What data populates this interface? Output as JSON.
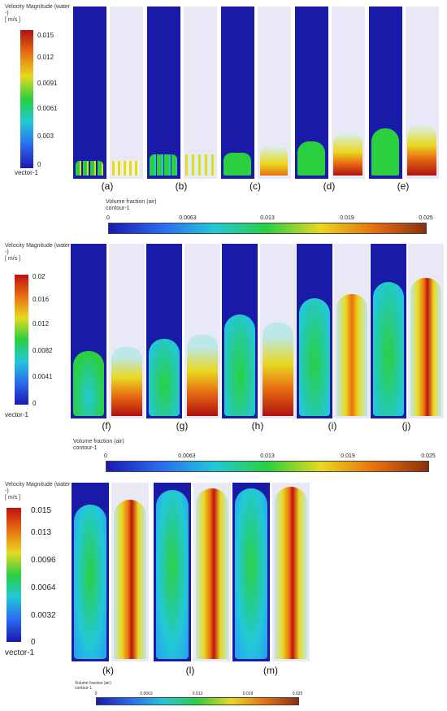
{
  "row1": {
    "legend_title": "Velocity Magnitude (water\n-)\n[ m/s ]",
    "legend_ticks": [
      "0.015",
      "0.012",
      "0.0091",
      "0.0061",
      "0.003",
      "0"
    ],
    "legend_foot": "vector-1",
    "captions": [
      "(a)",
      "(b)",
      "(c)",
      "(d)",
      "(e)"
    ],
    "colorbar_title": "Volume fraction (air)\ncontour-1",
    "colorbar_ticks": [
      "0",
      "0.0063",
      "0.013",
      "0.019",
      "0.025"
    ]
  },
  "row2": {
    "legend_title": "Velocity Magnitude (water\n-)\n[ m/s ]",
    "legend_ticks": [
      "0.02",
      "0.016",
      "0.012",
      "0.0082",
      "0.0041",
      "0"
    ],
    "legend_foot": "vector-1",
    "captions": [
      "(f)",
      "(g)",
      "(h)",
      "(i)",
      "(j)"
    ],
    "colorbar_title": "Volume fraction (air)\ncontour-1",
    "colorbar_ticks": [
      "0",
      "0.0063",
      "0.013",
      "0.019",
      "0.025"
    ]
  },
  "row3": {
    "legend_title": "Velocity Magnitude (water\n-)\n[ m/s ]",
    "legend_ticks": [
      "0.015",
      "0.013",
      "0.0096",
      "0.0064",
      "0.0032",
      "0"
    ],
    "legend_foot": "vector-1",
    "captions": [
      "(k)",
      "(l)",
      "(m)"
    ],
    "colorbar_title": "Volume fraction (air)\ncontour-1",
    "colorbar_ticks": [
      "0",
      "0.0063",
      "0.013",
      "0.019",
      "0.025"
    ]
  },
  "colors": {
    "water_blue": "#1a1aa8",
    "background_pale": "#e8e8f6",
    "scale": [
      "#1a1ab0",
      "#2a6af0",
      "#22c8d8",
      "#2ad040",
      "#e8d820",
      "#e87010",
      "#b01010"
    ]
  }
}
